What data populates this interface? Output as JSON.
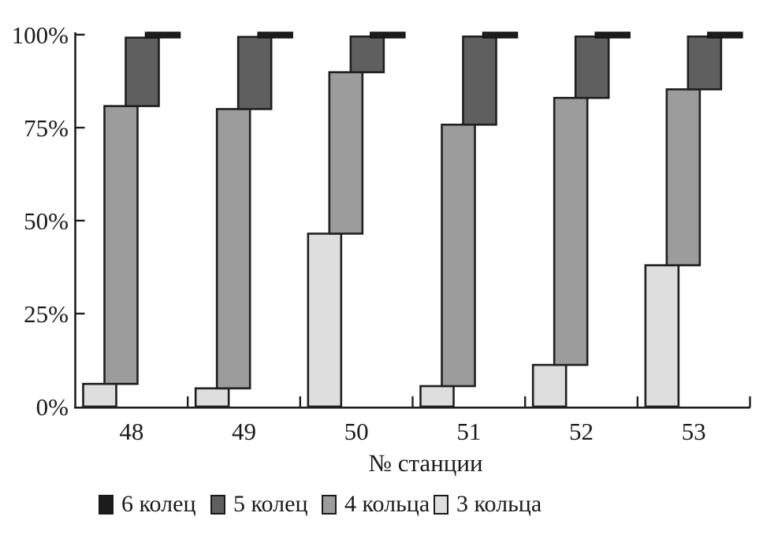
{
  "chart_data": {
    "type": "bar",
    "variant": "stepped-stacked-percentage",
    "title": "",
    "xlabel": "№ станции",
    "ylabel": "",
    "ylim": [
      0,
      100
    ],
    "grid": false,
    "legend_position": "bottom",
    "categories": [
      "48",
      "49",
      "50",
      "51",
      "52",
      "53"
    ],
    "series": [
      {
        "name": "3 кольца",
        "color": "#dedede",
        "values": [
          6.1,
          4.9,
          46.5,
          5.5,
          11.2,
          38.0
        ]
      },
      {
        "name": "4 кольца",
        "color": "#9c9c9c",
        "values": [
          74.7,
          75.1,
          43.4,
          70.3,
          71.8,
          47.3
        ]
      },
      {
        "name": "5 колец",
        "color": "#5f5f5f",
        "values": [
          18.4,
          19.4,
          9.6,
          23.7,
          16.5,
          14.2
        ]
      },
      {
        "name": "6 колец",
        "color": "#1c1c1c",
        "values": [
          0.8,
          0.6,
          0.5,
          0.5,
          0.5,
          0.5
        ]
      }
    ],
    "y_ticks": [
      {
        "label": "0%",
        "value": 0
      },
      {
        "label": "25%",
        "value": 25
      },
      {
        "label": "50%",
        "value": 50
      },
      {
        "label": "75%",
        "value": 75
      },
      {
        "label": "100%",
        "value": 100
      }
    ],
    "legend_order": [
      3,
      2,
      1,
      0
    ]
  }
}
